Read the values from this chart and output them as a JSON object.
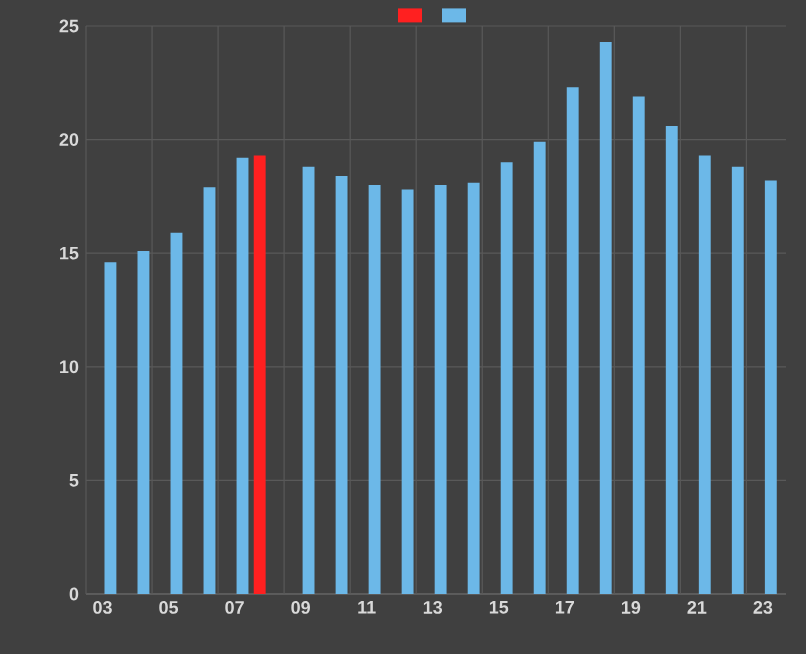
{
  "chart_data": {
    "type": "bar",
    "categories": [
      "03",
      null,
      "05",
      null,
      "07",
      null,
      "09",
      null,
      "11",
      null,
      "13",
      null,
      "15",
      null,
      "17",
      null,
      "19",
      null,
      "21",
      null,
      "23"
    ],
    "series": [
      {
        "color": "#ff2020",
        "values": [
          null,
          null,
          null,
          null,
          null,
          19.3,
          null,
          null,
          null,
          null,
          null,
          null,
          null,
          null,
          null,
          null,
          null,
          null,
          null,
          null,
          null
        ]
      },
      {
        "color": "#6cb8e8",
        "values": [
          14.6,
          15.1,
          15.9,
          17.9,
          19.2,
          null,
          18.8,
          18.4,
          18.0,
          17.8,
          18.0,
          18.1,
          19.0,
          19.9,
          22.3,
          24.3,
          21.9,
          20.6,
          19.3,
          18.8,
          18.2
        ]
      }
    ],
    "ylim": [
      0,
      25
    ],
    "yticks": [
      0,
      5,
      10,
      15,
      20,
      25
    ],
    "grid": true
  }
}
